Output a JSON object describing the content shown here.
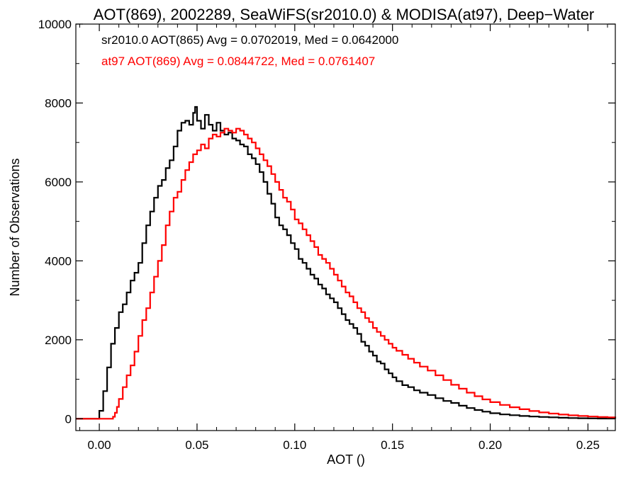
{
  "chart_data": {
    "type": "histogram-step",
    "title": "AOT(869), 2002289, SeaWiFS(sr2010.0) & MODISA(at97), Deep−Water",
    "xlabel": "AOT ()",
    "ylabel": "Number of Observations",
    "xlim": [
      -0.012,
      0.264
    ],
    "ylim": [
      -300,
      10000
    ],
    "x_ticks": [
      0.0,
      0.05,
      0.1,
      0.15,
      0.2,
      0.25
    ],
    "x_tick_labels": [
      "0.00",
      "0.05",
      "0.10",
      "0.15",
      "0.20",
      "0.25"
    ],
    "y_ticks": [
      0,
      2000,
      4000,
      6000,
      8000,
      10000
    ],
    "y_tick_labels": [
      "0",
      "2000",
      "4000",
      "6000",
      "8000",
      "10000"
    ],
    "bin_width": 0.001,
    "grid": false,
    "annotations": [
      {
        "text": "sr2010.0 AOT(865) Avg = 0.0702019, Med = 0.0642000",
        "color": "#000000"
      },
      {
        "text": "at97 AOT(869) Avg = 0.0844722, Med = 0.0761407",
        "color": "#ff0000"
      }
    ],
    "series": [
      {
        "color": "#000000",
        "points": [
          [
            -0.012,
            0
          ],
          [
            -0.001,
            0
          ],
          [
            0.0,
            200
          ],
          [
            0.002,
            700
          ],
          [
            0.004,
            1300
          ],
          [
            0.006,
            1900
          ],
          [
            0.008,
            2300
          ],
          [
            0.01,
            2700
          ],
          [
            0.012,
            2900
          ],
          [
            0.014,
            3200
          ],
          [
            0.016,
            3500
          ],
          [
            0.018,
            3700
          ],
          [
            0.02,
            3950
          ],
          [
            0.022,
            4450
          ],
          [
            0.024,
            4900
          ],
          [
            0.026,
            5250
          ],
          [
            0.028,
            5600
          ],
          [
            0.03,
            5900
          ],
          [
            0.032,
            6050
          ],
          [
            0.034,
            6350
          ],
          [
            0.036,
            6550
          ],
          [
            0.038,
            6900
          ],
          [
            0.04,
            7300
          ],
          [
            0.042,
            7500
          ],
          [
            0.044,
            7550
          ],
          [
            0.046,
            7450
          ],
          [
            0.048,
            7750
          ],
          [
            0.049,
            7900
          ],
          [
            0.05,
            7550
          ],
          [
            0.052,
            7350
          ],
          [
            0.054,
            7700
          ],
          [
            0.056,
            7450
          ],
          [
            0.058,
            7300
          ],
          [
            0.06,
            7500
          ],
          [
            0.062,
            7300
          ],
          [
            0.064,
            7200
          ],
          [
            0.066,
            7250
          ],
          [
            0.068,
            7100
          ],
          [
            0.07,
            7050
          ],
          [
            0.072,
            6950
          ],
          [
            0.074,
            6900
          ],
          [
            0.076,
            6700
          ],
          [
            0.078,
            6600
          ],
          [
            0.08,
            6450
          ],
          [
            0.082,
            6250
          ],
          [
            0.084,
            6000
          ],
          [
            0.086,
            5700
          ],
          [
            0.088,
            5450
          ],
          [
            0.09,
            5100
          ],
          [
            0.092,
            4900
          ],
          [
            0.094,
            4800
          ],
          [
            0.096,
            4650
          ],
          [
            0.098,
            4450
          ],
          [
            0.1,
            4300
          ],
          [
            0.102,
            4050
          ],
          [
            0.104,
            3950
          ],
          [
            0.106,
            3800
          ],
          [
            0.108,
            3650
          ],
          [
            0.11,
            3550
          ],
          [
            0.112,
            3400
          ],
          [
            0.114,
            3300
          ],
          [
            0.116,
            3150
          ],
          [
            0.118,
            3050
          ],
          [
            0.12,
            2950
          ],
          [
            0.122,
            2800
          ],
          [
            0.124,
            2650
          ],
          [
            0.126,
            2500
          ],
          [
            0.128,
            2400
          ],
          [
            0.13,
            2300
          ],
          [
            0.132,
            2150
          ],
          [
            0.134,
            1950
          ],
          [
            0.136,
            1850
          ],
          [
            0.138,
            1700
          ],
          [
            0.14,
            1600
          ],
          [
            0.142,
            1450
          ],
          [
            0.144,
            1400
          ],
          [
            0.146,
            1250
          ],
          [
            0.148,
            1150
          ],
          [
            0.15,
            1050
          ],
          [
            0.152,
            950
          ],
          [
            0.155,
            850
          ],
          [
            0.158,
            800
          ],
          [
            0.161,
            720
          ],
          [
            0.164,
            660
          ],
          [
            0.168,
            600
          ],
          [
            0.172,
            520
          ],
          [
            0.176,
            450
          ],
          [
            0.18,
            400
          ],
          [
            0.184,
            330
          ],
          [
            0.188,
            270
          ],
          [
            0.192,
            220
          ],
          [
            0.196,
            180
          ],
          [
            0.2,
            140
          ],
          [
            0.205,
            110
          ],
          [
            0.21,
            90
          ],
          [
            0.215,
            70
          ],
          [
            0.22,
            55
          ],
          [
            0.225,
            45
          ],
          [
            0.23,
            35
          ],
          [
            0.235,
            25
          ],
          [
            0.24,
            18
          ],
          [
            0.245,
            12
          ],
          [
            0.25,
            8
          ],
          [
            0.255,
            5
          ],
          [
            0.264,
            3
          ]
        ]
      },
      {
        "color": "#ff0000",
        "points": [
          [
            -0.012,
            0
          ],
          [
            0.006,
            0
          ],
          [
            0.007,
            50
          ],
          [
            0.008,
            150
          ],
          [
            0.009,
            300
          ],
          [
            0.01,
            500
          ],
          [
            0.012,
            800
          ],
          [
            0.014,
            1100
          ],
          [
            0.016,
            1350
          ],
          [
            0.018,
            1700
          ],
          [
            0.02,
            2100
          ],
          [
            0.022,
            2500
          ],
          [
            0.024,
            2800
          ],
          [
            0.026,
            3200
          ],
          [
            0.028,
            3600
          ],
          [
            0.03,
            4000
          ],
          [
            0.032,
            4400
          ],
          [
            0.034,
            4900
          ],
          [
            0.036,
            5250
          ],
          [
            0.038,
            5600
          ],
          [
            0.04,
            5750
          ],
          [
            0.042,
            6050
          ],
          [
            0.044,
            6300
          ],
          [
            0.046,
            6500
          ],
          [
            0.048,
            6700
          ],
          [
            0.05,
            6800
          ],
          [
            0.052,
            6950
          ],
          [
            0.054,
            6850
          ],
          [
            0.056,
            7100
          ],
          [
            0.058,
            7200
          ],
          [
            0.06,
            7150
          ],
          [
            0.062,
            7250
          ],
          [
            0.064,
            7350
          ],
          [
            0.066,
            7300
          ],
          [
            0.068,
            7250
          ],
          [
            0.07,
            7350
          ],
          [
            0.072,
            7300
          ],
          [
            0.074,
            7200
          ],
          [
            0.076,
            7100
          ],
          [
            0.078,
            7000
          ],
          [
            0.08,
            6850
          ],
          [
            0.082,
            6700
          ],
          [
            0.084,
            6550
          ],
          [
            0.086,
            6400
          ],
          [
            0.088,
            6200
          ],
          [
            0.09,
            6000
          ],
          [
            0.092,
            5800
          ],
          [
            0.094,
            5600
          ],
          [
            0.096,
            5500
          ],
          [
            0.098,
            5300
          ],
          [
            0.1,
            5050
          ],
          [
            0.102,
            4950
          ],
          [
            0.104,
            4800
          ],
          [
            0.106,
            4650
          ],
          [
            0.108,
            4500
          ],
          [
            0.11,
            4350
          ],
          [
            0.112,
            4150
          ],
          [
            0.114,
            4050
          ],
          [
            0.116,
            3950
          ],
          [
            0.118,
            3800
          ],
          [
            0.12,
            3650
          ],
          [
            0.122,
            3500
          ],
          [
            0.124,
            3350
          ],
          [
            0.126,
            3200
          ],
          [
            0.128,
            3100
          ],
          [
            0.13,
            2950
          ],
          [
            0.132,
            2800
          ],
          [
            0.134,
            2700
          ],
          [
            0.136,
            2550
          ],
          [
            0.138,
            2450
          ],
          [
            0.14,
            2300
          ],
          [
            0.142,
            2200
          ],
          [
            0.144,
            2100
          ],
          [
            0.146,
            2000
          ],
          [
            0.148,
            1900
          ],
          [
            0.15,
            1800
          ],
          [
            0.152,
            1720
          ],
          [
            0.155,
            1620
          ],
          [
            0.158,
            1520
          ],
          [
            0.161,
            1420
          ],
          [
            0.164,
            1320
          ],
          [
            0.168,
            1220
          ],
          [
            0.172,
            1100
          ],
          [
            0.176,
            980
          ],
          [
            0.18,
            860
          ],
          [
            0.184,
            760
          ],
          [
            0.188,
            660
          ],
          [
            0.192,
            570
          ],
          [
            0.196,
            490
          ],
          [
            0.2,
            420
          ],
          [
            0.205,
            350
          ],
          [
            0.21,
            290
          ],
          [
            0.215,
            240
          ],
          [
            0.22,
            195
          ],
          [
            0.225,
            160
          ],
          [
            0.23,
            130
          ],
          [
            0.235,
            105
          ],
          [
            0.24,
            85
          ],
          [
            0.245,
            70
          ],
          [
            0.25,
            55
          ],
          [
            0.255,
            45
          ],
          [
            0.26,
            35
          ],
          [
            0.264,
            30
          ]
        ]
      }
    ]
  }
}
